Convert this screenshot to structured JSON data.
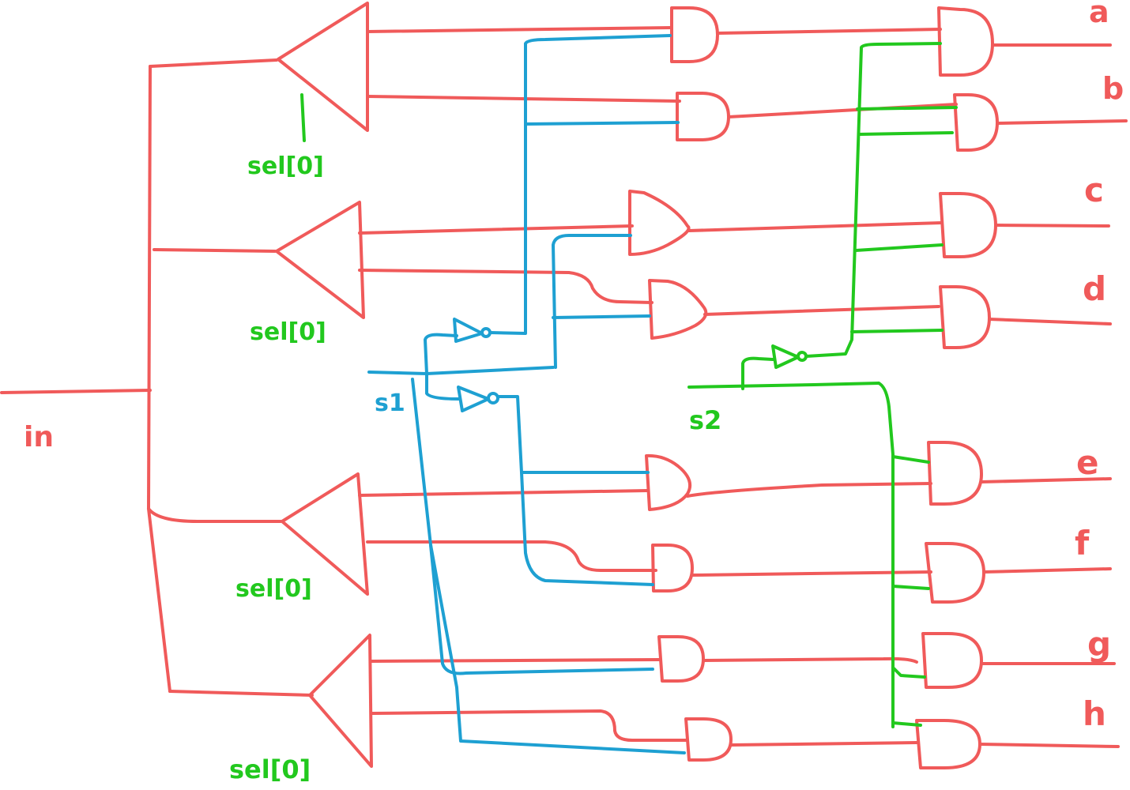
{
  "colors": {
    "data_wire": "#f05a5a",
    "s1_wire": "#1ea0d2",
    "s2_wire": "#22c81e",
    "background": "#ffffff"
  },
  "labels": {
    "input": "in",
    "sel_demux1": "sel[0]",
    "sel_demux2": "sel[0]",
    "sel_demux3": "sel[0]",
    "sel_demux4": "sel[0]",
    "s1": "s1",
    "s2": "s2",
    "outputs": [
      "a",
      "b",
      "c",
      "d",
      "e",
      "f",
      "g",
      "h"
    ]
  }
}
